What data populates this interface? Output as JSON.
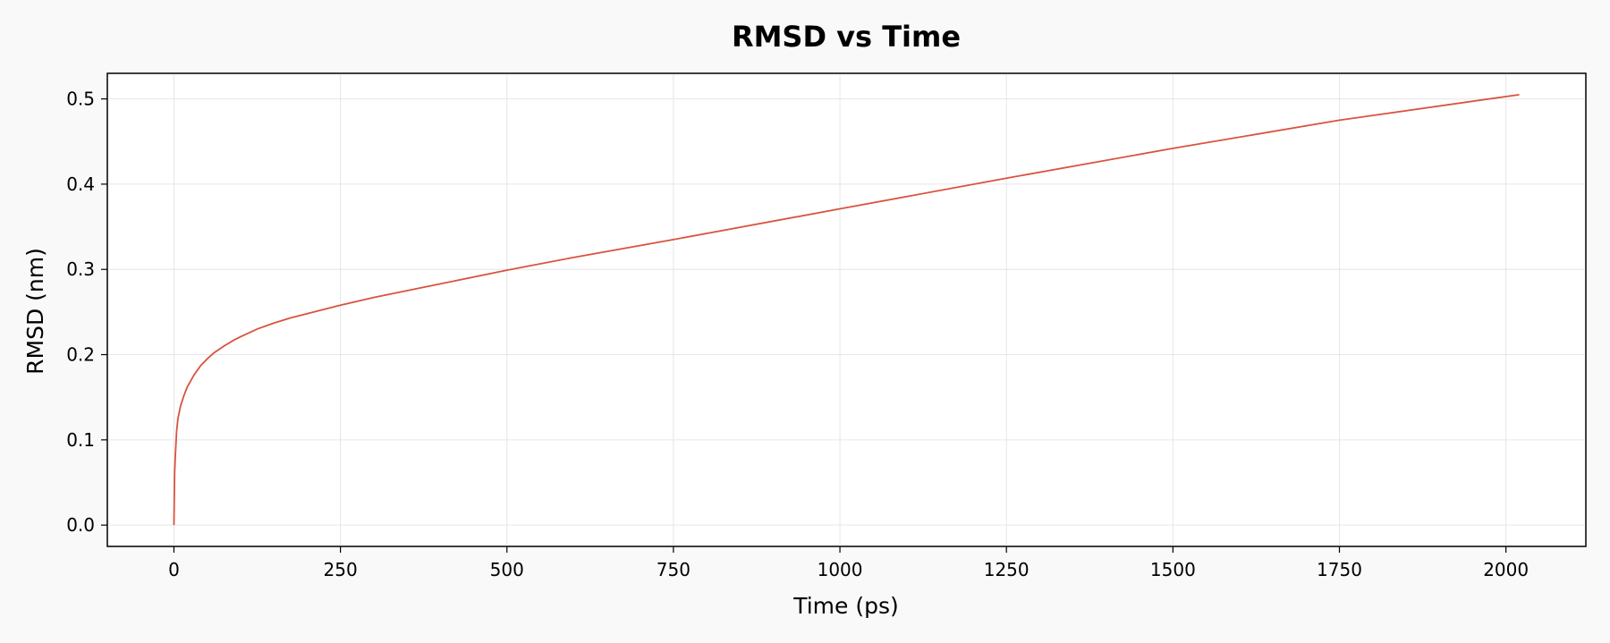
{
  "chart_data": {
    "type": "line",
    "title": "RMSD vs Time",
    "xlabel": "Time (ps)",
    "ylabel": "RMSD (nm)",
    "xlim": [
      -100,
      2120
    ],
    "ylim": [
      -0.025,
      0.53
    ],
    "xticks": [
      0,
      250,
      500,
      750,
      1000,
      1250,
      1500,
      1750,
      2000
    ],
    "yticks": [
      0.0,
      0.1,
      0.2,
      0.3,
      0.4,
      0.5
    ],
    "xtick_labels": [
      "0",
      "250",
      "500",
      "750",
      "1000",
      "1250",
      "1500",
      "1750",
      "2000"
    ],
    "ytick_labels": [
      "0.0",
      "0.1",
      "0.2",
      "0.3",
      "0.4",
      "0.5"
    ],
    "grid": true,
    "legend": "none",
    "series": [
      {
        "color": "#d9533f",
        "x": [
          0,
          1,
          2,
          4,
          6,
          10,
          15,
          20,
          30,
          40,
          50,
          60,
          75,
          90,
          100,
          125,
          150,
          175,
          200,
          250,
          300,
          400,
          500,
          600,
          750,
          1000,
          1250,
          1500,
          1750,
          2020
        ],
        "y": [
          0.0,
          0.06,
          0.08,
          0.11,
          0.125,
          0.14,
          0.152,
          0.162,
          0.176,
          0.187,
          0.195,
          0.202,
          0.21,
          0.217,
          0.221,
          0.23,
          0.237,
          0.243,
          0.248,
          0.258,
          0.267,
          0.283,
          0.299,
          0.314,
          0.335,
          0.371,
          0.407,
          0.442,
          0.475,
          0.505
        ]
      }
    ]
  },
  "colors": {
    "background": "#f9f9f9",
    "plot_area": "#ffffff",
    "grid": "#e6e6e6"
  }
}
